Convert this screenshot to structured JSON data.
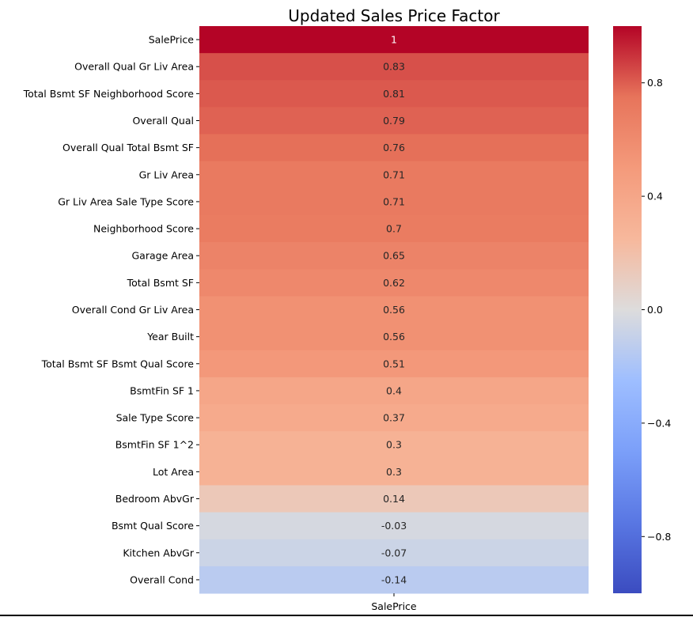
{
  "chart_data": {
    "type": "heatmap",
    "title": "Updated Sales Price Factor",
    "columns": [
      "SalePrice"
    ],
    "rows": [
      "SalePrice",
      "Overall Qual Gr Liv Area",
      "Total Bsmt SF Neighborhood Score",
      "Overall Qual",
      "Overall Qual Total Bsmt SF",
      "Gr Liv Area",
      "Gr Liv Area Sale Type Score",
      "Neighborhood Score",
      "Garage Area",
      "Total Bsmt SF",
      "Overall Cond Gr Liv Area",
      "Year Built",
      "Total Bsmt SF Bsmt Qual Score",
      "BsmtFin SF 1",
      "Sale Type Score",
      "BsmtFin SF 1^2",
      "Lot Area",
      "Bedroom AbvGr",
      "Bsmt Qual Score",
      "Kitchen AbvGr",
      "Overall Cond"
    ],
    "values": [
      1,
      0.83,
      0.81,
      0.79,
      0.76,
      0.71,
      0.71,
      0.7,
      0.65,
      0.62,
      0.56,
      0.56,
      0.51,
      0.4,
      0.37,
      0.3,
      0.3,
      0.14,
      -0.03,
      -0.07,
      -0.14
    ],
    "value_labels": [
      "1",
      "0.83",
      "0.81",
      "0.79",
      "0.76",
      "0.71",
      "0.71",
      "0.7",
      "0.65",
      "0.62",
      "0.56",
      "0.56",
      "0.51",
      "0.4",
      "0.37",
      "0.3",
      "0.3",
      "0.14",
      "-0.03",
      "-0.07",
      "-0.14"
    ],
    "colormap": "coolwarm",
    "vmin": -1,
    "vmax": 1,
    "colorbar": {
      "ticks": [
        0.8,
        0.4,
        0.0,
        -0.4,
        -0.8
      ],
      "tick_labels": [
        "0.8",
        "0.4",
        "0.0",
        "−0.4",
        "−0.8"
      ]
    },
    "xlabel": "",
    "ylabel": ""
  }
}
